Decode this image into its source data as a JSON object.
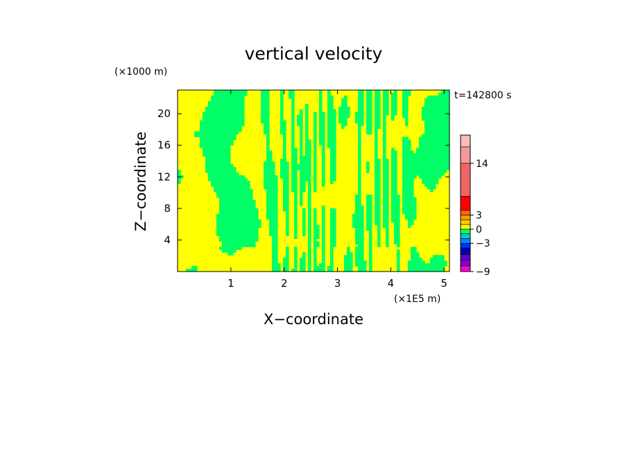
{
  "chart_data": {
    "type": "heatmap",
    "title": "vertical velocity",
    "xlabel": "X−coordinate",
    "ylabel": "Z−coordinate",
    "x_unit": "(×1E5 m)",
    "y_unit": "(×1000 m)",
    "time_label": "t=142800 s",
    "xlim": [
      0,
      5.1
    ],
    "ylim": [
      0,
      23
    ],
    "x_ticks": [
      1,
      2,
      3,
      4,
      5
    ],
    "x_tick_labels": [
      "1",
      "2",
      "3",
      "4",
      "5"
    ],
    "y_ticks": [
      4,
      8,
      12,
      16,
      20
    ],
    "y_tick_labels": [
      "4",
      "8",
      "12",
      "16",
      "20"
    ],
    "field_colors": {
      "positive": "#ffff00",
      "negative": "#00ff66"
    },
    "colorbar": {
      "range": [
        -9,
        20
      ],
      "tick_values": [
        14,
        3,
        0,
        -3,
        -9
      ],
      "tick_labels": [
        "14",
        "3",
        "0",
        "−3",
        "−9"
      ],
      "levels": [
        {
          "from": -9,
          "to": -7.8,
          "color": "#ff00cc"
        },
        {
          "from": -7.8,
          "to": -6.5,
          "color": "#8800cc"
        },
        {
          "from": -6.5,
          "to": -5.4,
          "color": "#6600cc"
        },
        {
          "from": -5.4,
          "to": -4.0,
          "color": "#0000aa"
        },
        {
          "from": -4.0,
          "to": -3.0,
          "color": "#0033ff"
        },
        {
          "from": -3.0,
          "to": -2.0,
          "color": "#0088ff"
        },
        {
          "from": -2.0,
          "to": -1.0,
          "color": "#00cccc"
        },
        {
          "from": -1.0,
          "to": 0.0,
          "color": "#00ff66"
        },
        {
          "from": 0.0,
          "to": 1.0,
          "color": "#ffff00"
        },
        {
          "from": 1.0,
          "to": 2.0,
          "color": "#ffcc00"
        },
        {
          "from": 2.0,
          "to": 3.0,
          "color": "#ff9900"
        },
        {
          "from": 3.0,
          "to": 4.0,
          "color": "#ff6600"
        },
        {
          "from": 4.0,
          "to": 7.0,
          "color": "#ff0000"
        },
        {
          "from": 7.0,
          "to": 14.0,
          "color": "#ee6666"
        },
        {
          "from": 14.0,
          "to": 17.5,
          "color": "#f49a9a"
        },
        {
          "from": 17.5,
          "to": 20.0,
          "color": "#f8bcbc"
        }
      ]
    }
  }
}
